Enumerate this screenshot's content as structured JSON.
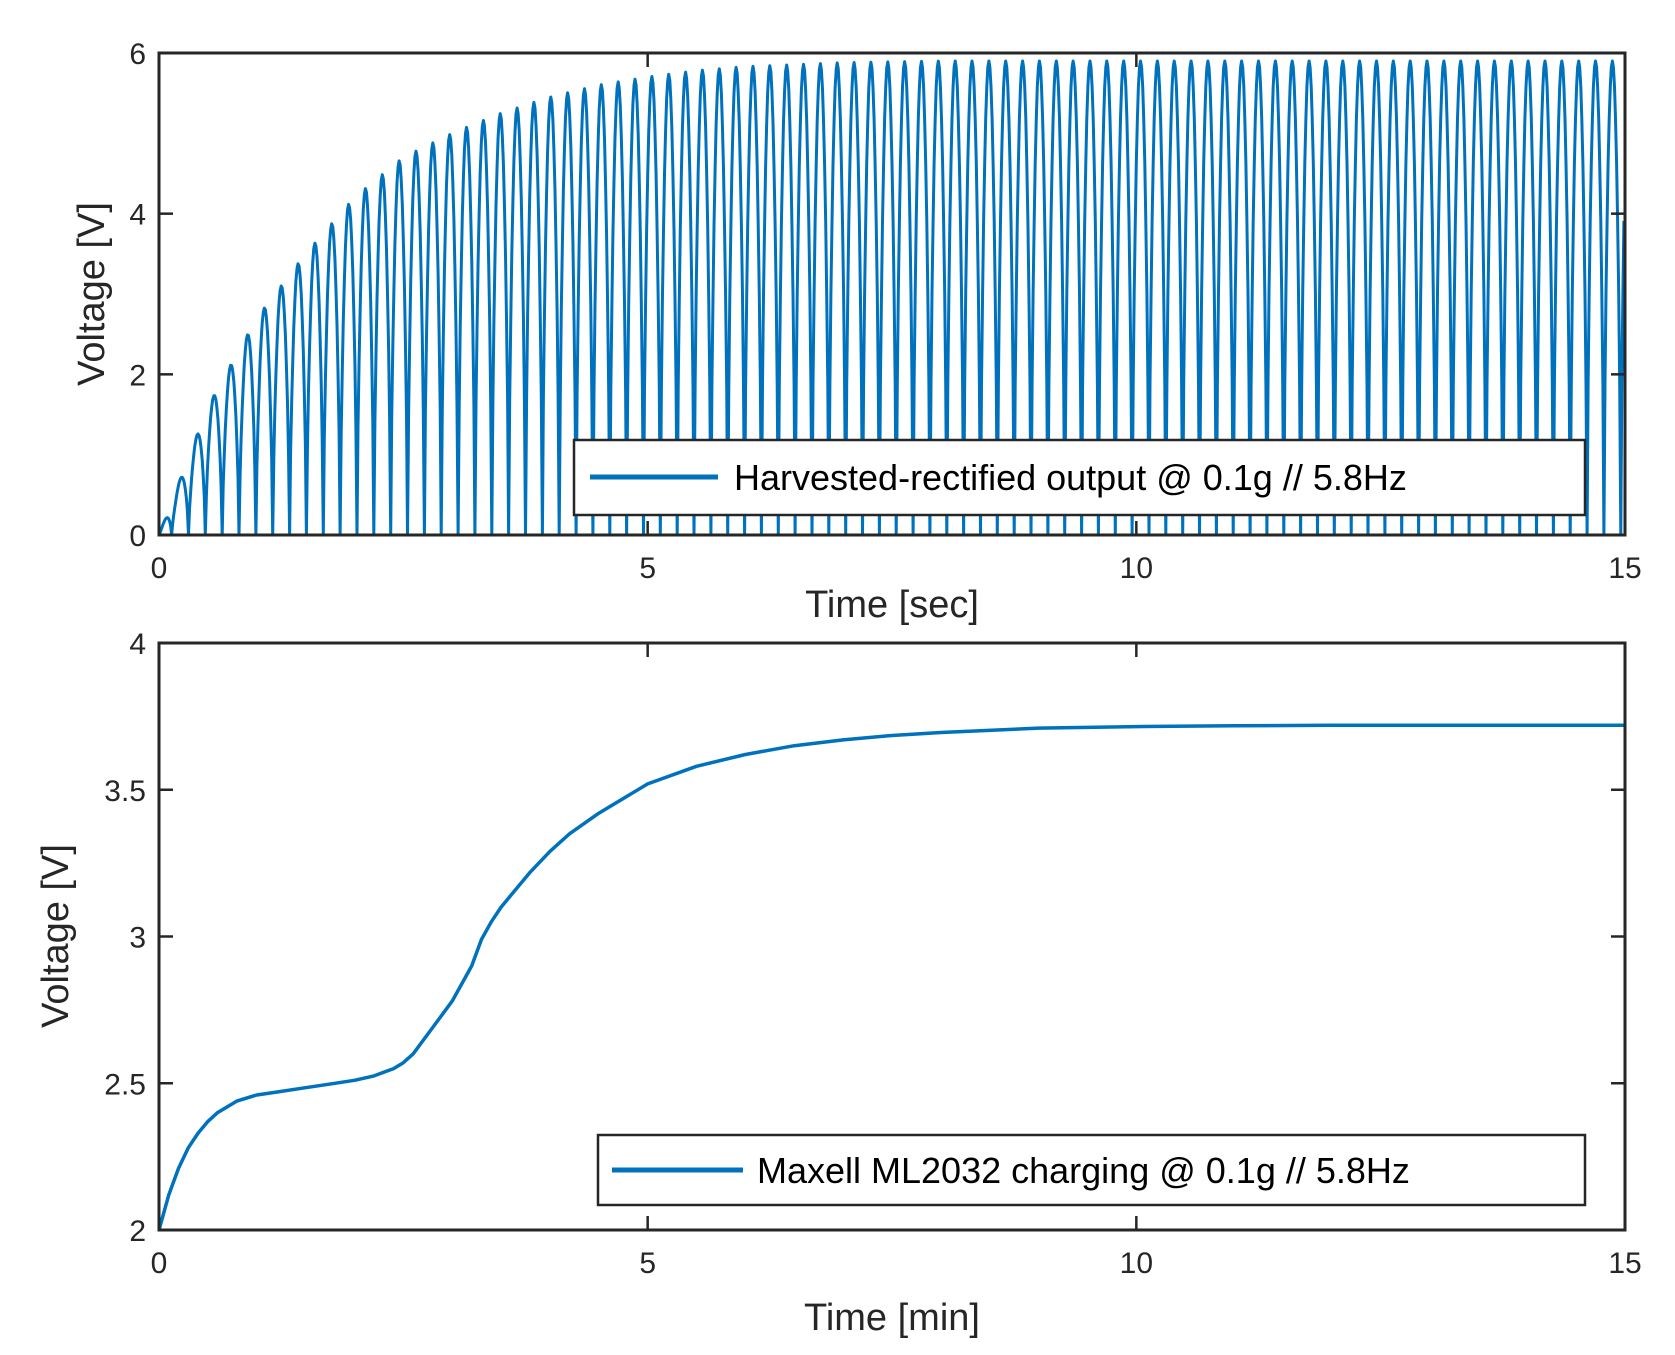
{
  "series_color": "#0072BD",
  "chart_data": [
    {
      "type": "line",
      "xlabel": "Time [sec]",
      "ylabel": "Voltage [V]",
      "xlim": [
        0,
        15
      ],
      "ylim": [
        0,
        6
      ],
      "xticks": [
        0,
        5,
        10,
        15
      ],
      "xtick_labels": [
        "0",
        "5",
        "10",
        "15"
      ],
      "yticks": [
        0,
        2,
        4,
        6
      ],
      "ytick_labels": [
        "0",
        "2",
        "4",
        "6"
      ],
      "legend": "Harvested-rectified output @ 0.1g // 5.8Hz",
      "legend_position": "bottom-right",
      "frequency_hz": 5.8,
      "envelope": {
        "x": [
          0,
          0.5,
          1,
          1.5,
          2,
          2.5,
          3,
          3.5,
          4,
          4.5,
          5,
          5.5,
          6,
          7,
          8,
          9,
          10,
          11,
          12,
          13,
          14,
          15
        ],
        "peak": [
          0,
          1.6,
          2.7,
          3.5,
          4.2,
          4.7,
          5.0,
          5.25,
          5.45,
          5.6,
          5.7,
          5.78,
          5.83,
          5.88,
          5.9,
          5.9,
          5.9,
          5.9,
          5.9,
          5.9,
          5.9,
          5.9
        ],
        "trough": [
          0,
          0,
          0,
          0,
          0,
          0,
          0,
          0,
          0,
          0,
          0,
          0,
          0,
          0,
          0,
          0,
          0,
          0,
          0,
          0,
          0,
          0
        ]
      }
    },
    {
      "type": "line",
      "xlabel": "Time [min]",
      "ylabel": "Voltage [V]",
      "xlim": [
        0,
        15
      ],
      "ylim": [
        2,
        4
      ],
      "xticks": [
        0,
        5,
        10,
        15
      ],
      "xtick_labels": [
        "0",
        "5",
        "10",
        "15"
      ],
      "yticks": [
        2,
        2.5,
        3,
        3.5,
        4
      ],
      "ytick_labels": [
        "2",
        "2.5",
        "3",
        "3.5",
        "4"
      ],
      "legend": "Maxell ML2032 charging @ 0.1g // 5.8Hz",
      "legend_position": "bottom-right",
      "series": [
        {
          "name": "Maxell ML2032 charging @ 0.1g // 5.8Hz",
          "x": [
            0,
            0.1,
            0.2,
            0.3,
            0.4,
            0.5,
            0.6,
            0.7,
            0.8,
            1.0,
            1.2,
            1.5,
            1.8,
            2.0,
            2.2,
            2.4,
            2.5,
            2.6,
            2.8,
            3.0,
            3.2,
            3.3,
            3.4,
            3.5,
            3.6,
            3.8,
            4.0,
            4.2,
            4.5,
            4.8,
            5.0,
            5.5,
            6.0,
            6.5,
            7.0,
            7.5,
            8.0,
            9.0,
            10.0,
            11.0,
            12.0,
            13.0,
            14.0,
            15.0
          ],
          "y": [
            2.0,
            2.12,
            2.21,
            2.28,
            2.33,
            2.37,
            2.4,
            2.42,
            2.44,
            2.46,
            2.47,
            2.485,
            2.5,
            2.51,
            2.525,
            2.55,
            2.57,
            2.6,
            2.69,
            2.78,
            2.9,
            2.99,
            3.05,
            3.1,
            3.14,
            3.22,
            3.29,
            3.35,
            3.42,
            3.48,
            3.52,
            3.58,
            3.62,
            3.65,
            3.67,
            3.685,
            3.695,
            3.71,
            3.715,
            3.718,
            3.72,
            3.72,
            3.72,
            3.72
          ]
        }
      ]
    }
  ]
}
